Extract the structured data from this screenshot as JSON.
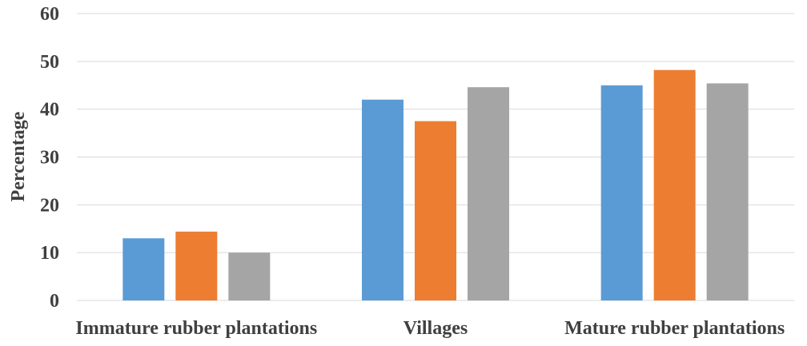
{
  "chart_data": {
    "type": "bar",
    "title": "",
    "xlabel": "",
    "ylabel": "Percentage",
    "categories": [
      "Immature rubber plantations",
      "Villages",
      "Mature rubber plantations"
    ],
    "series": [
      {
        "values": [
          13.0,
          42.0,
          45.0
        ],
        "color": "#5B9BD5"
      },
      {
        "values": [
          14.4,
          37.5,
          48.2
        ],
        "color": "#ED7D31"
      },
      {
        "values": [
          10.0,
          44.6,
          45.4
        ],
        "color": "#A5A5A5"
      }
    ],
    "ylim": [
      0,
      60
    ],
    "yticks": [
      0,
      10,
      20,
      30,
      40,
      50,
      60
    ],
    "grid": true,
    "legend": "none",
    "colors": {
      "gridline": "#D9D9D9",
      "text": "#404040"
    }
  }
}
